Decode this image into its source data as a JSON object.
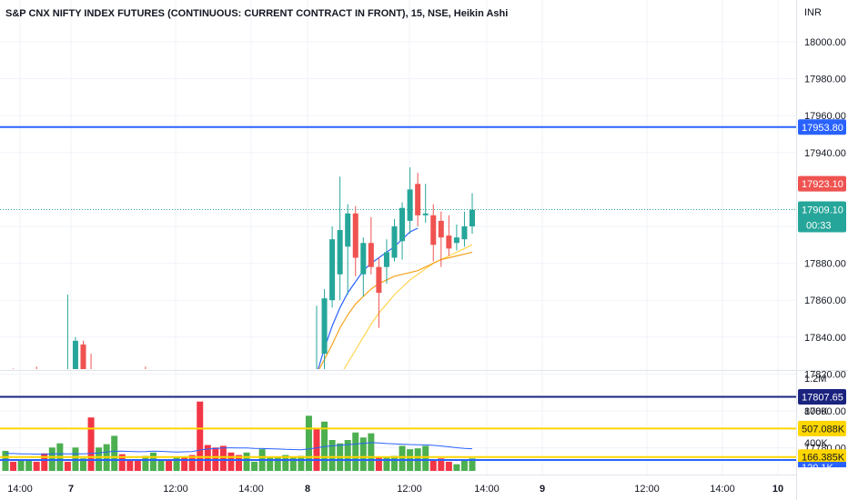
{
  "header": {
    "title": "S&P CNX NIFTY INDEX FUTURES (CONTINUOUS: CURRENT CONTRACT IN FRONT), 15, NSE, Heikin Ashi",
    "currency": "INR"
  },
  "colors": {
    "up": "#26a69a",
    "down": "#ef5350",
    "vol_up": "#4caf50",
    "vol_down": "#f23645",
    "ma_fast": "#2962ff",
    "ma_mid": "#f7a21b",
    "ma_slow": "#ffd54f",
    "level_blue": "#2962ff",
    "level_navy": "#1a237e",
    "level_yellow": "#ffd600",
    "last_price": "#26a69a"
  },
  "chart_data": [
    {
      "type": "candlestick",
      "title": "S&P CNX NIFTY INDEX FUTURES (CONTINUOUS: CURRENT CONTRACT IN FRONT), 15, NSE, Heikin Ashi",
      "ylabel": "INR",
      "ylim": [
        17773,
        18014
      ],
      "y_ticks": [
        "18000.00",
        "17980.00",
        "17960.00",
        "17940.00",
        "17880.00",
        "17860.00",
        "17840.00",
        "17820.00",
        "17800.00",
        "17780.00"
      ],
      "x_ticks": [
        "14:00",
        "7",
        "12:00",
        "14:00",
        "8",
        "12:00",
        "14:00",
        "9",
        "12:00",
        "14:00",
        "10"
      ],
      "x_ticks_bold": [
        false,
        true,
        false,
        false,
        true,
        false,
        false,
        true,
        false,
        false,
        true
      ],
      "candles": [
        {
          "o": 17799,
          "h": 17818,
          "l": 17793,
          "c": 17816
        },
        {
          "o": 17814,
          "h": 17823,
          "l": 17806,
          "c": 17806
        },
        {
          "o": 17806,
          "h": 17812,
          "l": 17800,
          "c": 17802
        },
        {
          "o": 17804,
          "h": 17816,
          "l": 17799,
          "c": 17814
        },
        {
          "o": 17812,
          "h": 17824,
          "l": 17800,
          "c": 17803
        },
        {
          "o": 17804,
          "h": 17811,
          "l": 17790,
          "c": 17796
        },
        {
          "o": 17797,
          "h": 17810,
          "l": 17794,
          "c": 17808
        },
        {
          "o": 17808,
          "h": 17822,
          "l": 17800,
          "c": 17818
        },
        {
          "o": 17807,
          "h": 17863,
          "l": 17796,
          "c": 17810
        },
        {
          "o": 17811,
          "h": 17840,
          "l": 17809,
          "c": 17838
        },
        {
          "o": 17836,
          "h": 17838,
          "l": 17820,
          "c": 17822
        },
        {
          "o": 17822,
          "h": 17831,
          "l": 17807,
          "c": 17811
        },
        {
          "o": 17812,
          "h": 17818,
          "l": 17793,
          "c": 17798
        },
        {
          "o": 17806,
          "h": 17816,
          "l": 17801,
          "c": 17814
        },
        {
          "o": 17814,
          "h": 17818,
          "l": 17806,
          "c": 17813
        },
        {
          "o": 17814,
          "h": 17818,
          "l": 17807,
          "c": 17813
        },
        {
          "o": 17812,
          "h": 17819,
          "l": 17806,
          "c": 17815
        },
        {
          "o": 17814,
          "h": 17822,
          "l": 17810,
          "c": 17818
        },
        {
          "o": 17818,
          "h": 17824,
          "l": 17814,
          "c": 17816
        },
        {
          "o": 17815,
          "h": 17819,
          "l": 17812,
          "c": 17817
        },
        {
          "o": 17817,
          "h": 17820,
          "l": 17810,
          "c": 17812
        },
        {
          "o": 17815,
          "h": 17818,
          "l": 17796,
          "c": 17800
        },
        {
          "o": 17806,
          "h": 17810,
          "l": 17790,
          "c": 17792
        },
        {
          "o": 17796,
          "h": 17799,
          "l": 17784,
          "c": 17786
        },
        {
          "o": 17788,
          "h": 17792,
          "l": 17774,
          "c": 17777
        },
        {
          "o": 17781,
          "h": 17783,
          "l": 17770,
          "c": 17774
        },
        {
          "o": 17770,
          "h": 17775,
          "l": 17765,
          "c": 17768
        },
        {
          "o": 17768,
          "h": 17773,
          "l": 17762,
          "c": 17765
        },
        {
          "o": 17766,
          "h": 17770,
          "l": 17760,
          "c": 17762
        },
        {
          "o": 17762,
          "h": 17778,
          "l": 17760,
          "c": 17773
        },
        {
          "o": 17760,
          "h": 17770,
          "l": 17755,
          "c": 17768
        },
        {
          "o": 17762,
          "h": 17776,
          "l": 17760,
          "c": 17772
        },
        {
          "o": 17762,
          "h": 17778,
          "l": 17758,
          "c": 17770
        },
        {
          "o": 17764,
          "h": 17779,
          "l": 17760,
          "c": 17777
        },
        {
          "o": 17770,
          "h": 17786,
          "l": 17766,
          "c": 17784
        },
        {
          "o": 17778,
          "h": 17811,
          "l": 17777,
          "c": 17808
        },
        {
          "o": 17792,
          "h": 17803,
          "l": 17775,
          "c": 17800
        },
        {
          "o": 17790,
          "h": 17799,
          "l": 17781,
          "c": 17788
        },
        {
          "o": 17784,
          "h": 17788,
          "l": 17770,
          "c": 17779
        },
        {
          "o": 17778,
          "h": 17818,
          "l": 17777,
          "c": 17816
        },
        {
          "o": 17799,
          "h": 17857,
          "l": 17797,
          "c": 17812
        },
        {
          "o": 17831,
          "h": 17866,
          "l": 17809,
          "c": 17861
        },
        {
          "o": 17860,
          "h": 17900,
          "l": 17856,
          "c": 17893
        },
        {
          "o": 17874,
          "h": 17927,
          "l": 17860,
          "c": 17898
        },
        {
          "o": 17889,
          "h": 17912,
          "l": 17863,
          "c": 17907
        },
        {
          "o": 17907,
          "h": 17911,
          "l": 17873,
          "c": 17883
        },
        {
          "o": 17874,
          "h": 17894,
          "l": 17862,
          "c": 17891
        },
        {
          "o": 17891,
          "h": 17905,
          "l": 17874,
          "c": 17878
        },
        {
          "o": 17878,
          "h": 17883,
          "l": 17845,
          "c": 17864
        },
        {
          "o": 17878,
          "h": 17893,
          "l": 17869,
          "c": 17886
        },
        {
          "o": 17883,
          "h": 17904,
          "l": 17881,
          "c": 17900
        },
        {
          "o": 17892,
          "h": 17913,
          "l": 17882,
          "c": 17910
        },
        {
          "o": 17903,
          "h": 17932,
          "l": 17896,
          "c": 17920
        },
        {
          "o": 17923,
          "h": 17929,
          "l": 17900,
          "c": 17906
        },
        {
          "o": 17906,
          "h": 17923,
          "l": 17902,
          "c": 17907
        },
        {
          "o": 17906,
          "h": 17912,
          "l": 17881,
          "c": 17890
        },
        {
          "o": 17903,
          "h": 17908,
          "l": 17878,
          "c": 17894
        },
        {
          "o": 17895,
          "h": 17906,
          "l": 17884,
          "c": 17888
        },
        {
          "o": 17891,
          "h": 17901,
          "l": 17887,
          "c": 17894
        },
        {
          "o": 17893,
          "h": 17908,
          "l": 17889,
          "c": 17900
        },
        {
          "o": 17900,
          "h": 17918,
          "l": 17896,
          "c": 17909
        }
      ],
      "ma_fast": [
        17788,
        17791,
        17793,
        17795,
        17796,
        17798,
        17801,
        17805,
        17808,
        17810,
        17811,
        17809,
        17805,
        17804,
        17805,
        17806,
        17808,
        17810,
        17812,
        17811,
        17809,
        17805,
        17800,
        17794,
        17786,
        17779,
        17772,
        17765,
        17760,
        17758,
        17757,
        17757,
        17758,
        17760,
        17764,
        17770,
        17776,
        17782,
        17790,
        17805,
        17820,
        17834,
        17846,
        17856,
        17864,
        17870,
        17876,
        17880,
        17883,
        17886,
        17889,
        17893,
        17897,
        17899,
        null,
        null,
        null,
        null,
        null,
        null,
        null
      ],
      "ma_mid": [
        17790,
        17792,
        17794,
        17796,
        17797,
        17798,
        17800,
        17803,
        17806,
        17813,
        17818,
        17822,
        17821,
        17819,
        17816,
        17815,
        17815,
        17817,
        17818,
        17818,
        17815,
        17811,
        17806,
        17800,
        17796,
        17793,
        17790,
        17788,
        17786,
        17785,
        17785,
        17785,
        17786,
        17788,
        17791,
        17795,
        17800,
        17805,
        17810,
        17815,
        17820,
        17828,
        17836,
        17845,
        17852,
        17858,
        17862,
        17866,
        17869,
        17871,
        17873,
        17874,
        17875,
        17876,
        17878,
        17880,
        17882,
        17883,
        17884,
        17885,
        17886
      ],
      "ma_slow": [
        17795,
        17796,
        17797,
        17797,
        17798,
        17798,
        17800,
        17802,
        17805,
        17808,
        17812,
        17815,
        17816,
        17816,
        17815,
        17815,
        17815,
        17816,
        17817,
        17817,
        17816,
        17814,
        17812,
        17809,
        17806,
        17803,
        17800,
        17797,
        17795,
        17793,
        17792,
        17791,
        17791,
        17792,
        17793,
        17794,
        17795,
        17797,
        17799,
        17801,
        17804,
        17808,
        17813,
        17819,
        17826,
        17833,
        17840,
        17847,
        17853,
        17858,
        17863,
        17867,
        17871,
        17874,
        17877,
        17880,
        17882,
        17884,
        17886,
        17888,
        17890
      ],
      "levels": [
        {
          "price": 17953.8,
          "label": "17953.80",
          "color": "#2962ff"
        },
        {
          "price": 17807.65,
          "label": "17807.65",
          "color": "#1a237e"
        }
      ],
      "last_price": {
        "price": 17909.1,
        "label": "17909.10",
        "countdown": "00:33"
      },
      "high_marker": {
        "price": 17923.1,
        "label": "17923.10"
      }
    },
    {
      "type": "bar",
      "title": "Volume",
      "y_ticks": [
        "1.2M",
        "800K",
        "400K"
      ],
      "ylim": [
        0,
        1320000
      ],
      "volumes": [
        {
          "v": 240000,
          "up": true
        },
        {
          "v": 110000,
          "up": false
        },
        {
          "v": 120000,
          "up": true
        },
        {
          "v": 140000,
          "up": true
        },
        {
          "v": 110000,
          "up": false
        },
        {
          "v": 210000,
          "up": false
        },
        {
          "v": 280000,
          "up": true
        },
        {
          "v": 330000,
          "up": true
        },
        {
          "v": 110000,
          "up": false
        },
        {
          "v": 280000,
          "up": true
        },
        {
          "v": 150000,
          "up": true
        },
        {
          "v": 640000,
          "up": false
        },
        {
          "v": 280000,
          "up": true
        },
        {
          "v": 320000,
          "up": true
        },
        {
          "v": 420000,
          "up": true
        },
        {
          "v": 200000,
          "up": false
        },
        {
          "v": 120000,
          "up": false
        },
        {
          "v": 140000,
          "up": false
        },
        {
          "v": 180000,
          "up": true
        },
        {
          "v": 220000,
          "up": true
        },
        {
          "v": 130000,
          "up": true
        },
        {
          "v": 140000,
          "up": false
        },
        {
          "v": 160000,
          "up": true
        },
        {
          "v": 170000,
          "up": false
        },
        {
          "v": 190000,
          "up": false
        },
        {
          "v": 830000,
          "up": false
        },
        {
          "v": 310000,
          "up": false
        },
        {
          "v": 280000,
          "up": false
        },
        {
          "v": 300000,
          "up": false
        },
        {
          "v": 220000,
          "up": false
        },
        {
          "v": 190000,
          "up": false
        },
        {
          "v": 220000,
          "up": true
        },
        {
          "v": 110000,
          "up": true
        },
        {
          "v": 260000,
          "up": true
        },
        {
          "v": 160000,
          "up": true
        },
        {
          "v": 170000,
          "up": true
        },
        {
          "v": 190000,
          "up": true
        },
        {
          "v": 160000,
          "up": true
        },
        {
          "v": 180000,
          "up": true
        },
        {
          "v": 660000,
          "up": true
        },
        {
          "v": 500000,
          "up": false
        },
        {
          "v": 590000,
          "up": true
        },
        {
          "v": 370000,
          "up": true
        },
        {
          "v": 330000,
          "up": true
        },
        {
          "v": 370000,
          "up": true
        },
        {
          "v": 460000,
          "up": true
        },
        {
          "v": 400000,
          "up": true
        },
        {
          "v": 450000,
          "up": true
        },
        {
          "v": 170000,
          "up": false
        },
        {
          "v": 160000,
          "up": true
        },
        {
          "v": 180000,
          "up": true
        },
        {
          "v": 300000,
          "up": true
        },
        {
          "v": 260000,
          "up": true
        },
        {
          "v": 270000,
          "up": true
        },
        {
          "v": 300000,
          "up": true
        },
        {
          "v": 140000,
          "up": false
        },
        {
          "v": 150000,
          "up": false
        },
        {
          "v": 110000,
          "up": false
        },
        {
          "v": 80000,
          "up": true
        },
        {
          "v": 120000,
          "up": true
        },
        {
          "v": 150000,
          "up": true
        }
      ],
      "volume_ma": [
        210000,
        208000,
        205000,
        203000,
        201000,
        200000,
        204000,
        206000,
        205000,
        206000,
        204000,
        210000,
        215000,
        225000,
        235000,
        236000,
        233000,
        230000,
        232000,
        236000,
        234000,
        230000,
        226000,
        228000,
        231000,
        250000,
        262000,
        268000,
        274000,
        276000,
        275000,
        275000,
        270000,
        268000,
        266000,
        262000,
        258000,
        256000,
        254000,
        262000,
        276000,
        290000,
        300000,
        308000,
        315000,
        322000,
        330000,
        338000,
        334000,
        328000,
        324000,
        320000,
        316000,
        313000,
        311000,
        306000,
        298000,
        288000,
        278000,
        270000,
        265000
      ],
      "levels": [
        {
          "value": 507088,
          "label": "507.088K",
          "color": "#ffd600"
        },
        {
          "value": 166385,
          "label": "166.385K",
          "color": "#ffd600"
        }
      ],
      "partial_label": "120.1K",
      "level_blue_value": 130000
    }
  ]
}
